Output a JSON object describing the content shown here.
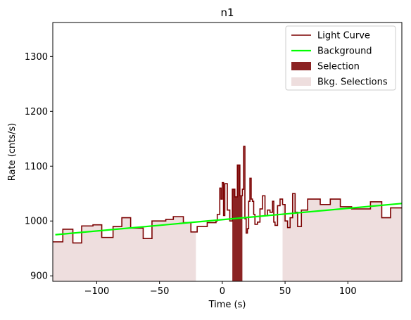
{
  "chart_data": {
    "type": "line",
    "title": "n1",
    "xlabel": "Time (s)",
    "ylabel": "Rate (cnts/s)",
    "xlim": [
      -135,
      143
    ],
    "ylim": [
      890,
      1362
    ],
    "xticks": [
      -100,
      -50,
      0,
      50,
      100
    ],
    "yticks": [
      900,
      1000,
      1100,
      1200,
      1300
    ],
    "grid": false,
    "legend_position": "top-right",
    "colors": {
      "light_curve": "#7b0000",
      "background": "#00ff00",
      "selection": "#8b2323",
      "bkg_selection": "#eedede"
    },
    "legend": [
      {
        "label": "Light Curve",
        "kind": "line",
        "color": "#7b0000"
      },
      {
        "label": "Background",
        "kind": "line",
        "color": "#00ff00"
      },
      {
        "label": "Selection",
        "kind": "patch",
        "color": "#8b2323"
      },
      {
        "label": "Bkg. Selections",
        "kind": "patch",
        "color": "#eedede"
      }
    ],
    "series": [
      {
        "name": "Light Curve",
        "step": "post",
        "x": [
          -135,
          -127,
          -119,
          -112,
          -103,
          -96,
          -87,
          -80,
          -73,
          -63,
          -56,
          -45,
          -39,
          -31,
          -25,
          -20,
          -12,
          -5,
          -4,
          -2,
          -1,
          0,
          1,
          2,
          4,
          6,
          8,
          10,
          12,
          14,
          16,
          17,
          18,
          19,
          20,
          21,
          22,
          23,
          24,
          25,
          26,
          28,
          30,
          32,
          34,
          36,
          38,
          40,
          41,
          42,
          44,
          46,
          48,
          50,
          52,
          54,
          56,
          58,
          60,
          63,
          68,
          78,
          86,
          94,
          103,
          118,
          127,
          134,
          143
        ],
        "y": [
          962,
          985,
          960,
          991,
          993,
          970,
          990,
          1006,
          987,
          968,
          1000,
          1003,
          1008,
          997,
          980,
          990,
          997,
          1000,
          1012,
          1060,
          1040,
          1070,
          1010,
          1068,
          1020,
          1000,
          1058,
          1044,
          1102,
          1046,
          1058,
          1136,
          1004,
          978,
          986,
          1036,
          1078,
          1040,
          1036,
          1012,
          994,
          998,
          1022,
          1046,
          1010,
          1020,
          1016,
          1036,
          998,
          992,
          1028,
          1040,
          1030,
          1000,
          988,
          1006,
          1050,
          1016,
          990,
          1020,
          1040,
          1030,
          1040,
          1026,
          1022,
          1035,
          1006,
          1024,
          1022
        ]
      },
      {
        "name": "Background",
        "type": "linear",
        "x": [
          -133,
          143
        ],
        "y": [
          975,
          1032
        ]
      }
    ],
    "selection": {
      "x": [
        8,
        16
      ]
    },
    "bkg_selections": [
      {
        "x": [
          -135,
          -21
        ]
      },
      {
        "x": [
          48,
          143
        ]
      }
    ]
  }
}
